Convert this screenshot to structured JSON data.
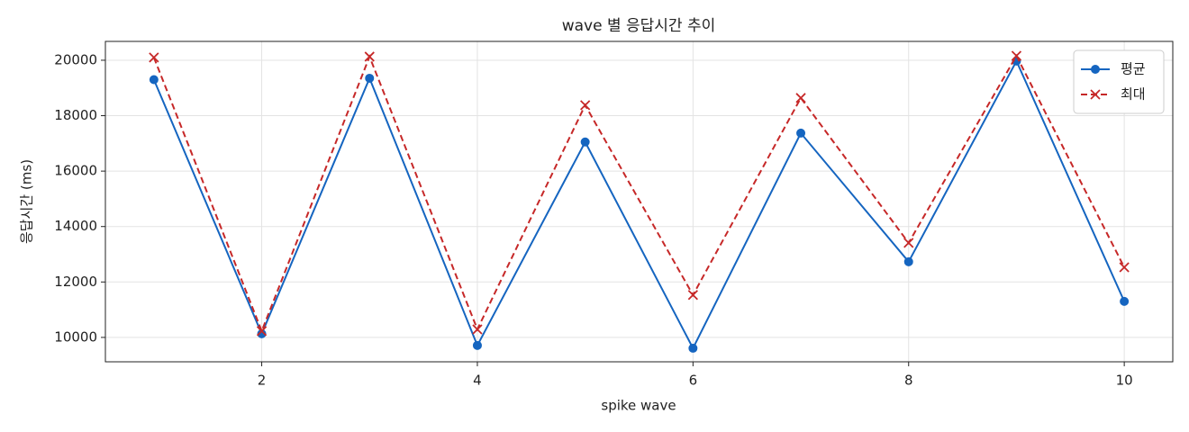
{
  "chart_data": {
    "type": "line",
    "title": "wave 별 응답시간 추이",
    "xlabel": "spike wave",
    "ylabel": "응답시간 (ms)",
    "x": [
      1,
      2,
      3,
      4,
      5,
      6,
      7,
      8,
      9,
      10
    ],
    "series": [
      {
        "name": "평균",
        "color": "#1565c0",
        "marker": "o",
        "linestyle": "solid",
        "values": [
          19300,
          10130,
          19350,
          9710,
          17050,
          9610,
          17370,
          12730,
          19970,
          11300
        ]
      },
      {
        "name": "최대",
        "color": "#c62828",
        "marker": "x",
        "linestyle": "dashed",
        "values": [
          20100,
          10230,
          20130,
          10290,
          18380,
          11530,
          18640,
          13410,
          20160,
          12530
        ]
      }
    ],
    "xlim": [
      0.55,
      10.45
    ],
    "ylim": [
      9120,
      20680
    ],
    "xticks": [
      2,
      4,
      6,
      8,
      10
    ],
    "yticks": [
      10000,
      12000,
      14000,
      16000,
      18000,
      20000
    ],
    "grid": true,
    "legend": "upper right"
  }
}
